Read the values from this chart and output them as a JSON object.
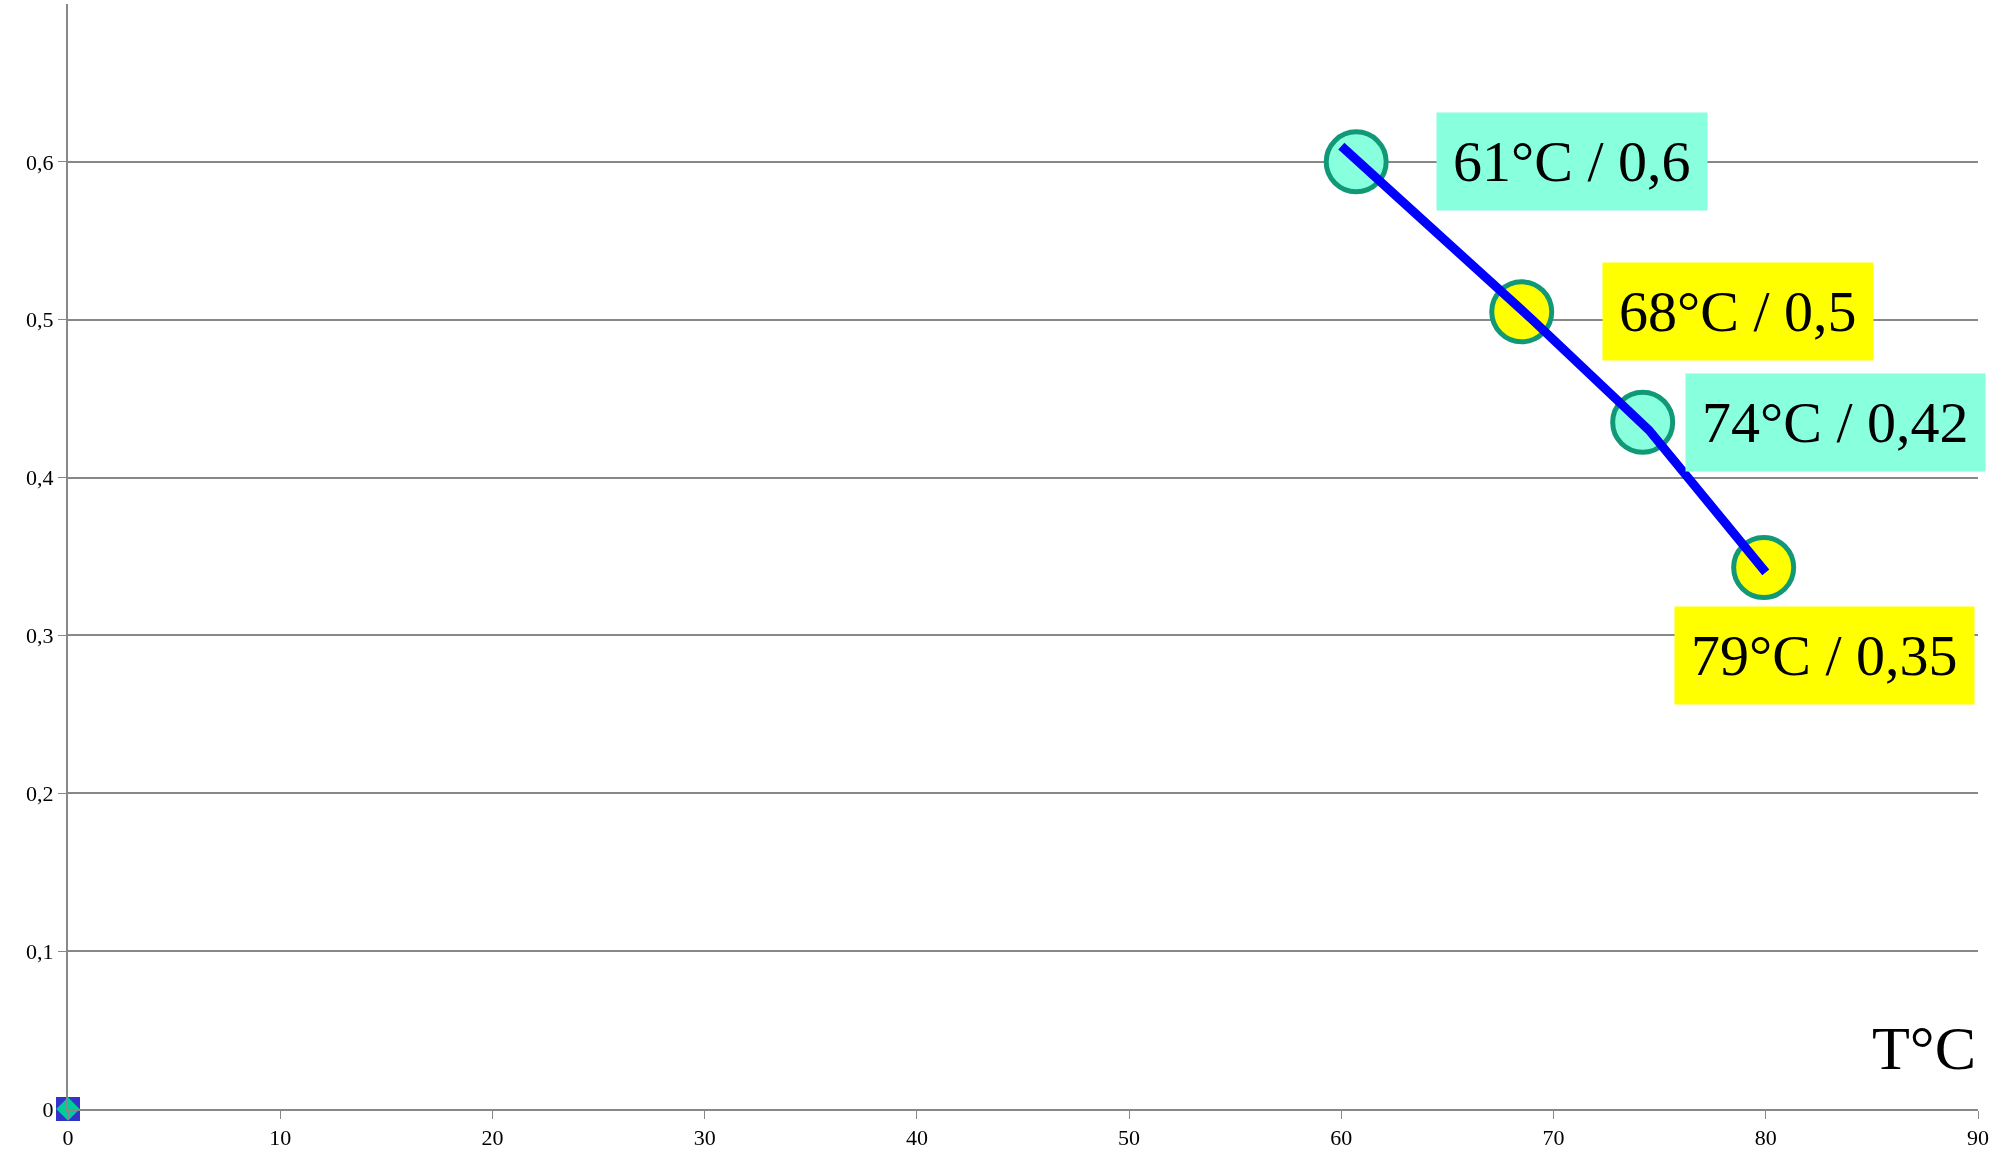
{
  "chart_data": {
    "type": "scatter",
    "xlabel": "T°C",
    "xlim": [
      0,
      90
    ],
    "xticks": [
      0,
      10,
      20,
      30,
      40,
      50,
      60,
      70,
      80,
      90
    ],
    "ylim": [
      0,
      0.7
    ],
    "yticks": [
      0,
      {
        "value": 0.1,
        "label": "0,1"
      },
      {
        "value": 0.2,
        "label": "0,2"
      },
      {
        "value": 0.3,
        "label": "0,3"
      },
      {
        "value": 0.4,
        "label": "0,4"
      },
      {
        "value": 0.5,
        "label": "0,5"
      },
      {
        "value": 0.6,
        "label": "0,6"
      }
    ],
    "grid": "y",
    "series": [
      {
        "type": "line",
        "color": "#0000ff",
        "marker": "none",
        "line_style": "solid",
        "x": [
          60,
          69,
          74.5,
          80
        ],
        "values": [
          0.61,
          0.5,
          0.43,
          0.34
        ]
      },
      {
        "color": "#3333cc",
        "marker": "square",
        "x": [
          0
        ],
        "values": [
          0
        ]
      },
      {
        "color": "#00cc99",
        "marker": "diamond",
        "x": [
          0
        ],
        "values": [
          0
        ]
      },
      {
        "marker": "circle",
        "colors": [
          "#88ffdd",
          "#ffff00",
          "#88ffdd",
          "#ffff00"
        ],
        "x": [
          60.7,
          68.5,
          74.2,
          79.9
        ],
        "values": [
          0.6,
          0.505,
          0.435,
          0.343
        ]
      }
    ],
    "annotations": [
      {
        "text": "61°C / 0,6",
        "x": 60.7,
        "y": 0.6
      },
      {
        "text": "68°C / 0,5",
        "x": 68.5,
        "y": 0.505
      },
      {
        "text": "74°C / 0,42",
        "x": 74.2,
        "y": 0.435
      },
      {
        "text": "79°C / 0,35",
        "x": 79.9,
        "y": 0.343
      }
    ]
  }
}
